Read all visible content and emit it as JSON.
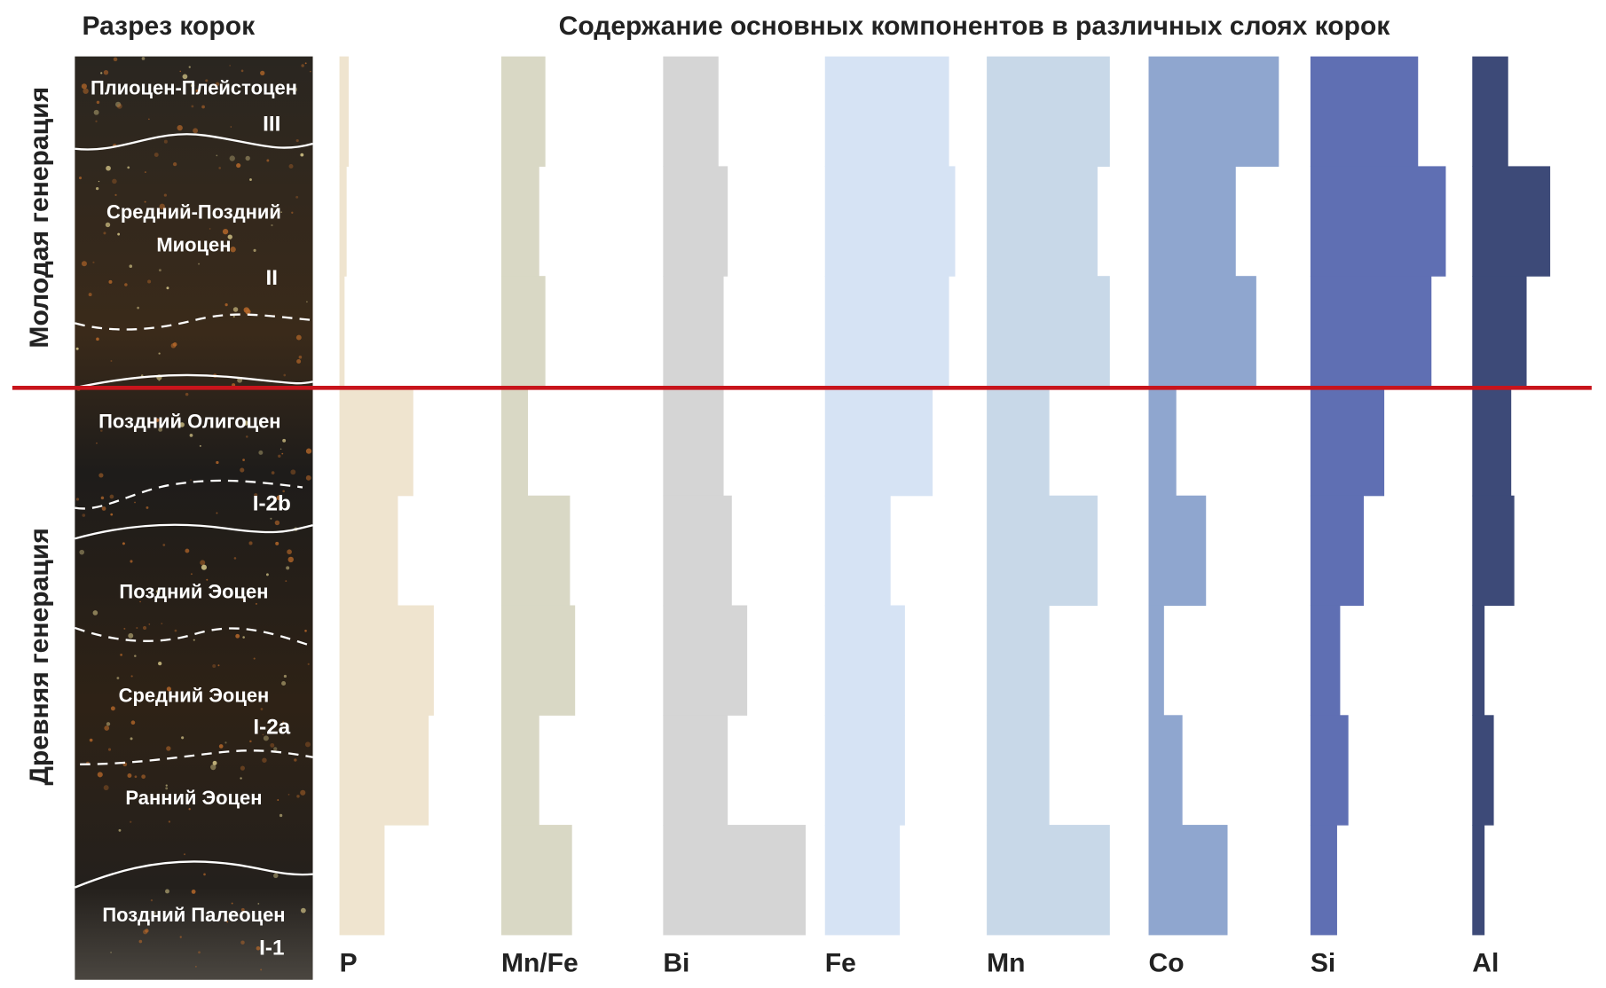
{
  "chart_data": {
    "type": "profile",
    "title": "Содержание основных компонентов в различных слоях корок",
    "categories": [
      null,
      null,
      null,
      null,
      null,
      null,
      null,
      null
    ],
    "xlim": [
      0,
      150
    ],
    "series": [
      {
        "name": "P",
        "color": "#efe4cf",
        "values": [
          9,
          7,
          5,
          72,
          57,
          92,
          87,
          44
        ]
      },
      {
        "name": "Mn/Fe",
        "color": "#d9d8c5",
        "values": [
          43,
          37,
          43,
          26,
          67,
          72,
          37,
          69
        ]
      },
      {
        "name": "Bi",
        "color": "#d5d5d5",
        "values": [
          54,
          63,
          59,
          59,
          67,
          82,
          63,
          139
        ]
      },
      {
        "name": "Fe",
        "color": "#d6e3f4",
        "values": [
          121,
          127,
          121,
          105,
          64,
          78,
          78,
          73
        ]
      },
      {
        "name": "Mn",
        "color": "#c8d8e8",
        "values": [
          120,
          108,
          120,
          61,
          108,
          61,
          61,
          120
        ]
      },
      {
        "name": "Co",
        "color": "#8fa6cf",
        "values": [
          127,
          85,
          105,
          27,
          56,
          15,
          33,
          77
        ]
      },
      {
        "name": "Si",
        "color": "#5f6fb3",
        "values": [
          105,
          132,
          118,
          72,
          52,
          29,
          37,
          26
        ]
      },
      {
        "name": "Al",
        "color": "#3d4a78",
        "values": [
          35,
          76,
          53,
          38,
          41,
          12,
          21,
          12
        ]
      }
    ]
  },
  "section": {
    "title": "Разрез корок",
    "generations": [
      "Молодая генерация",
      "Древняя генерация"
    ],
    "layers": [
      "Плиоцен-Плейстоцен",
      "Средний-Поздний",
      "Миоцен",
      "Поздний Олигоцен",
      "Поздний Эоцен",
      "Средний Эоцен",
      "Ранний Эоцен",
      "Поздний Палеоцен"
    ],
    "indices": [
      "III",
      "II",
      "I-2b",
      "I-2a",
      "I-1"
    ]
  }
}
